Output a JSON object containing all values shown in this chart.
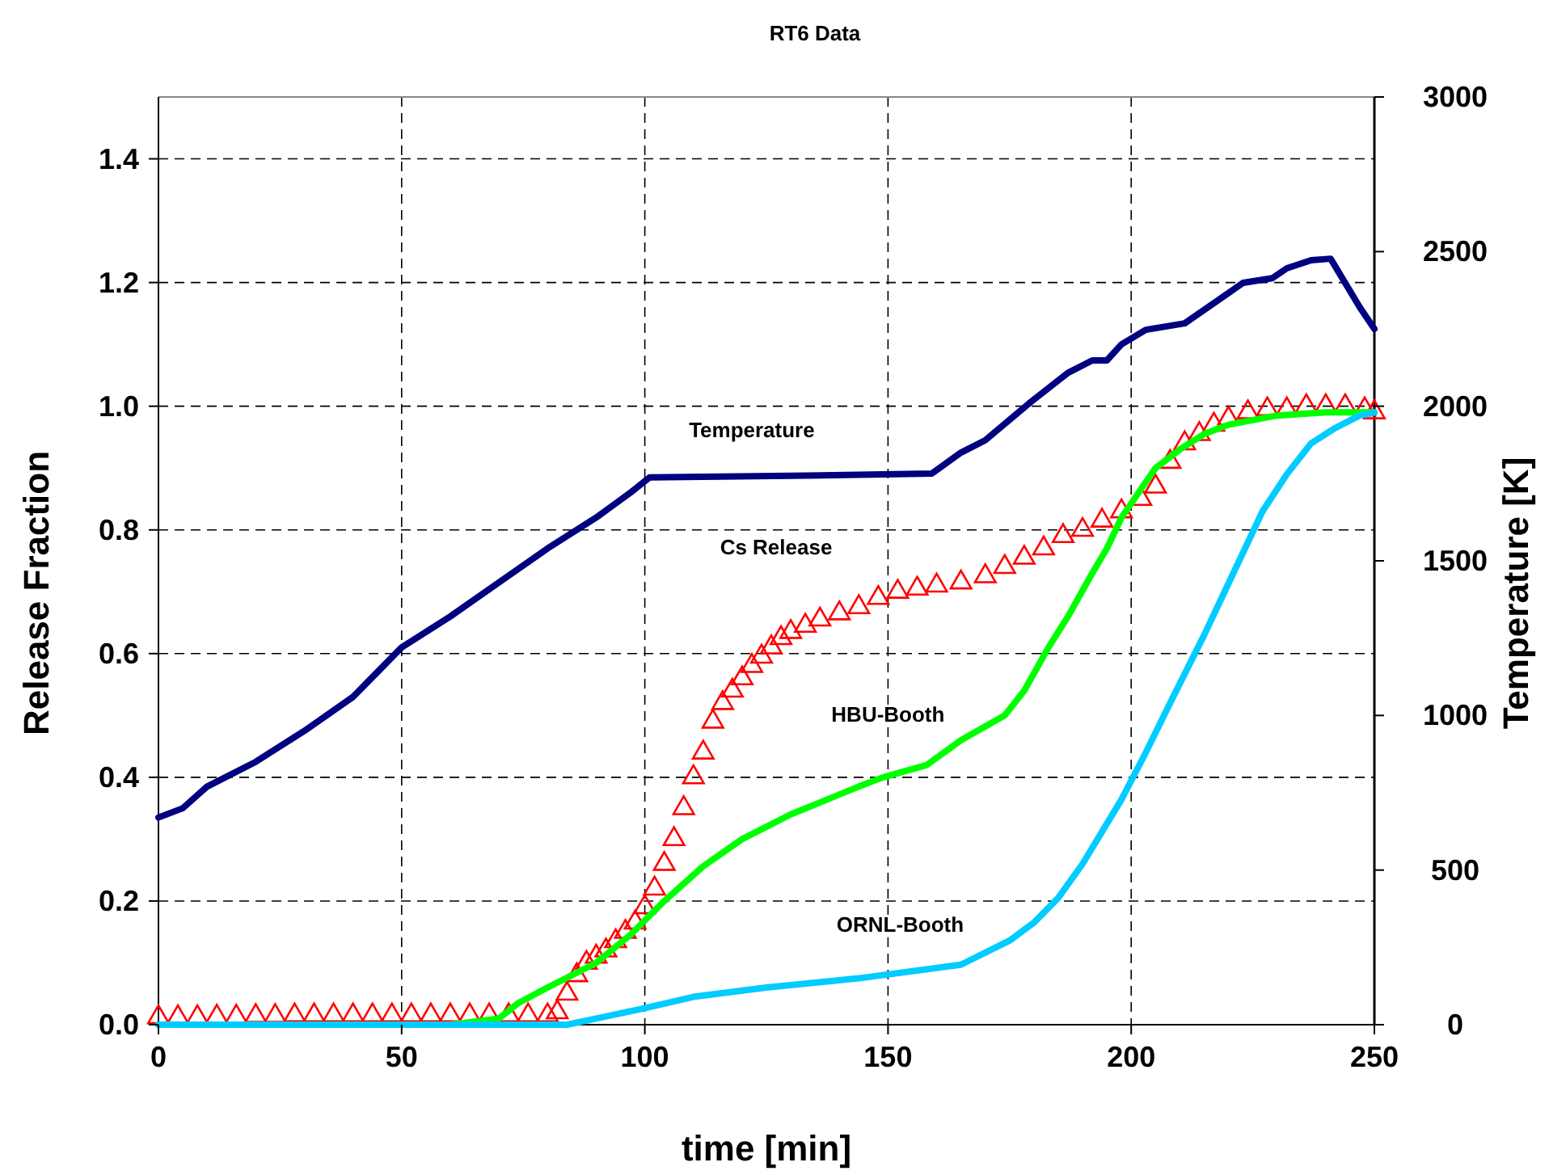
{
  "chart_data": {
    "type": "line",
    "title": "RT6 Data",
    "xlabel": "time [min]",
    "ylabel": "Release Fraction",
    "y2label": "Temperature [K]",
    "xlim": [
      0,
      250
    ],
    "xticks": [
      0,
      50,
      100,
      150,
      200,
      250
    ],
    "ylim": [
      0,
      1.5
    ],
    "yticks": [
      {
        "value": 0,
        "label": "0.0"
      },
      {
        "value": 0.2,
        "label": "0.2"
      },
      {
        "value": 0.4,
        "label": "0.4"
      },
      {
        "value": 0.6,
        "label": "0.6"
      },
      {
        "value": 0.8,
        "label": "0.8"
      },
      {
        "value": 1,
        "label": "1.0"
      },
      {
        "value": 1.2,
        "label": "1.2"
      },
      {
        "value": 1.4,
        "label": "1.4"
      }
    ],
    "y2lim": [
      0,
      3000
    ],
    "y2ticks": [
      0,
      500,
      1000,
      1500,
      2000,
      2500,
      3000
    ],
    "grid": true,
    "series": [
      {
        "name": "Temperature",
        "color": "#000080",
        "axis": "y2",
        "x": [
          0,
          5,
          10,
          20,
          30,
          40,
          50,
          60,
          70,
          80,
          90,
          97,
          101,
          130,
          159,
          165,
          170,
          179,
          187,
          192,
          195,
          198,
          203,
          211,
          223,
          229,
          232,
          237,
          241,
          247,
          250
        ],
        "values": [
          670,
          700,
          770,
          850,
          950,
          1060,
          1220,
          1320,
          1430,
          1540,
          1640,
          1720,
          1770,
          1775,
          1782,
          1850,
          1890,
          2009,
          2108,
          2148,
          2148,
          2200,
          2247,
          2268,
          2399,
          2414,
          2446,
          2472,
          2477,
          2320,
          2250
        ]
      },
      {
        "name": "Cs Release",
        "type": "scatter",
        "marker": "triangle",
        "color": "#ff0000",
        "x": [
          0,
          4,
          8,
          12,
          16,
          20,
          24,
          28,
          32,
          36,
          40,
          44,
          48,
          52,
          56,
          60,
          64,
          68,
          72,
          76,
          80,
          82,
          84,
          86,
          88,
          90,
          92,
          94,
          96,
          98,
          100,
          102,
          104,
          106,
          108,
          110,
          112,
          114,
          116,
          118,
          120,
          122,
          124,
          126,
          128,
          130,
          133,
          136,
          140,
          144,
          148,
          152,
          156,
          160,
          165,
          170,
          174,
          178,
          182,
          186,
          190,
          194,
          198,
          202,
          205,
          208,
          211,
          214,
          217,
          220,
          224,
          228,
          232,
          236,
          240,
          244,
          248,
          250
        ],
        "values": [
          0.012,
          0.012,
          0.012,
          0.013,
          0.013,
          0.014,
          0.014,
          0.015,
          0.015,
          0.015,
          0.015,
          0.015,
          0.015,
          0.015,
          0.015,
          0.015,
          0.015,
          0.015,
          0.015,
          0.015,
          0.015,
          0.02,
          0.05,
          0.08,
          0.1,
          0.11,
          0.12,
          0.135,
          0.15,
          0.165,
          0.19,
          0.22,
          0.26,
          0.3,
          0.35,
          0.4,
          0.44,
          0.49,
          0.52,
          0.54,
          0.56,
          0.58,
          0.595,
          0.61,
          0.625,
          0.635,
          0.645,
          0.655,
          0.665,
          0.675,
          0.69,
          0.7,
          0.705,
          0.71,
          0.715,
          0.725,
          0.74,
          0.755,
          0.77,
          0.79,
          0.8,
          0.815,
          0.83,
          0.85,
          0.87,
          0.91,
          0.94,
          0.955,
          0.97,
          0.98,
          0.99,
          0.995,
          0.995,
          1.0,
          1.0,
          1.0,
          0.995,
          0.99
        ]
      },
      {
        "name": "HBU-Booth",
        "color": "#00ff00",
        "x": [
          0,
          60,
          70,
          74,
          80,
          90,
          97,
          104,
          112,
          120,
          130,
          144,
          149,
          158,
          165,
          174,
          178,
          183,
          187,
          192,
          195,
          198,
          205,
          210,
          215,
          220,
          230,
          240,
          250
        ],
        "values": [
          0,
          0,
          0.01,
          0.035,
          0.06,
          0.1,
          0.145,
          0.2,
          0.256,
          0.3,
          0.34,
          0.385,
          0.4,
          0.42,
          0.46,
          0.5,
          0.54,
          0.61,
          0.66,
          0.73,
          0.77,
          0.82,
          0.9,
          0.93,
          0.955,
          0.97,
          0.985,
          0.99,
          0.99
        ]
      },
      {
        "name": "ORNL-Booth",
        "color": "#00ccff",
        "x": [
          0,
          60,
          84,
          90,
          99,
          110,
          125,
          144,
          165,
          175,
          180,
          185,
          190,
          198,
          203,
          208,
          215,
          221,
          227,
          232,
          237,
          242,
          247,
          250
        ],
        "values": [
          0,
          0,
          0,
          0.01,
          0.025,
          0.045,
          0.06,
          0.075,
          0.097,
          0.136,
          0.165,
          0.205,
          0.26,
          0.364,
          0.44,
          0.52,
          0.63,
          0.73,
          0.83,
          0.89,
          0.94,
          0.965,
          0.985,
          0.99
        ]
      }
    ]
  }
}
